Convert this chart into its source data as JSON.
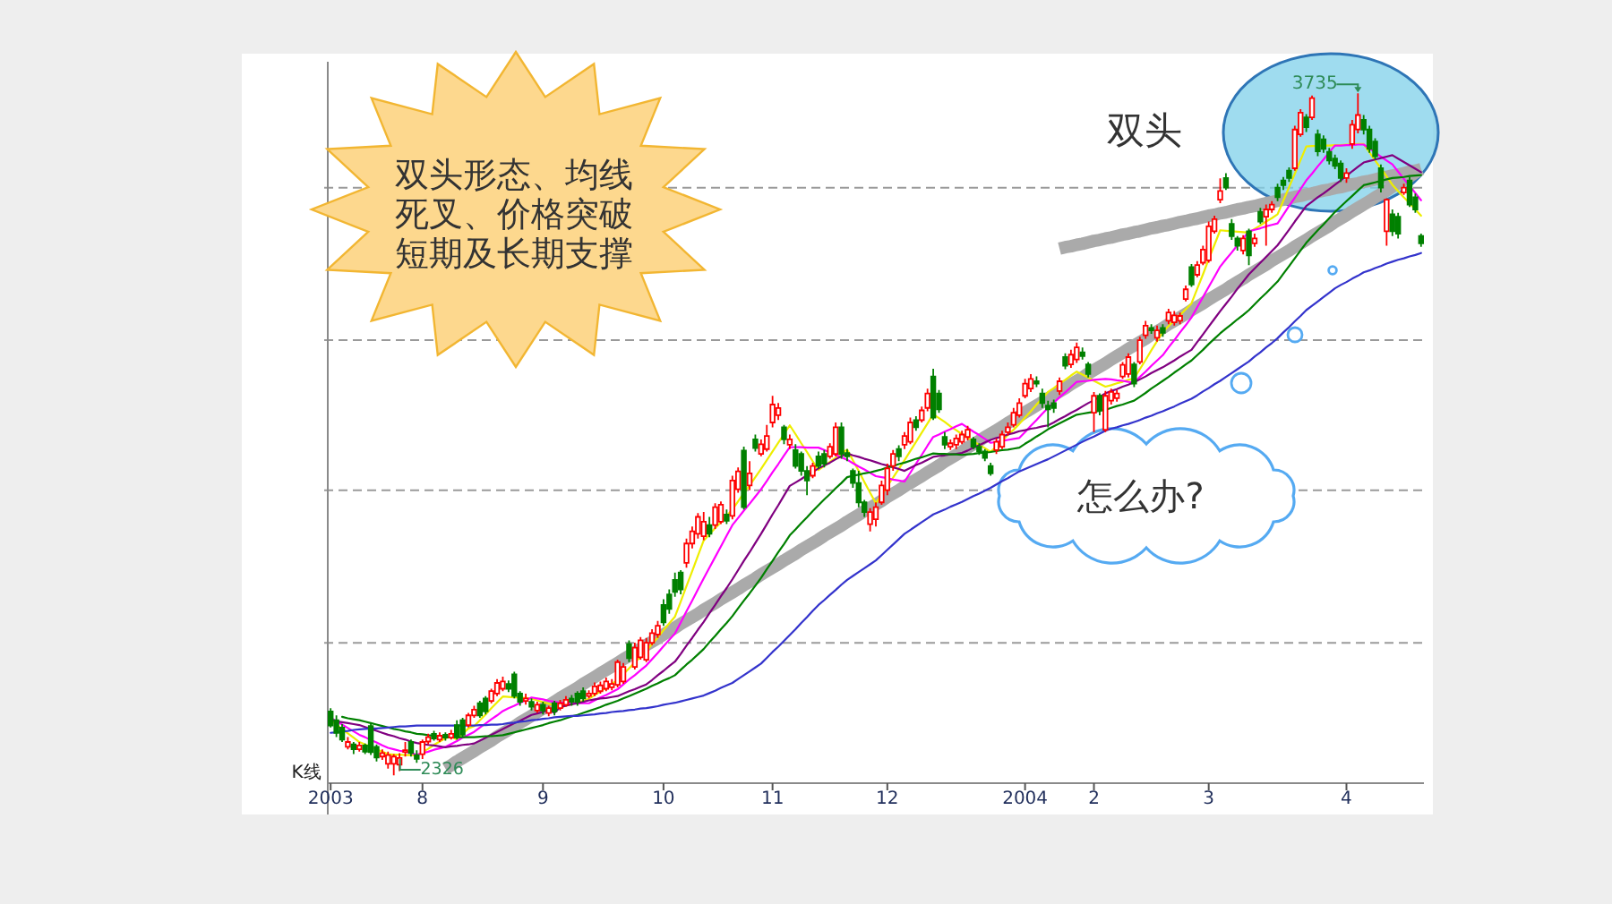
{
  "chart_data": {
    "type": "candlestick",
    "categories": [
      "2003",
      null,
      null,
      null,
      null,
      null,
      null,
      null,
      null,
      null,
      null,
      null,
      null,
      null,
      null,
      null,
      "8",
      null,
      null,
      null,
      null,
      null,
      null,
      null,
      null,
      null,
      null,
      null,
      null,
      null,
      null,
      null,
      null,
      null,
      null,
      null,
      null,
      "9",
      null,
      null,
      null,
      null,
      null,
      null,
      null,
      null,
      null,
      null,
      null,
      null,
      null,
      null,
      null,
      null,
      null,
      null,
      null,
      null,
      "10",
      null,
      null,
      null,
      null,
      null,
      null,
      null,
      null,
      null,
      null,
      null,
      null,
      null,
      null,
      null,
      null,
      null,
      null,
      "11",
      null,
      null,
      null,
      null,
      null,
      null,
      null,
      null,
      null,
      null,
      null,
      null,
      null,
      null,
      null,
      null,
      null,
      null,
      null,
      "12",
      null,
      null,
      null,
      null,
      null,
      null,
      null,
      null,
      null,
      null,
      null,
      null,
      null,
      null,
      null,
      null,
      null,
      null,
      null,
      null,
      null,
      null,
      null,
      "2004",
      null,
      null,
      null,
      null,
      null,
      null,
      null,
      null,
      null,
      null,
      null,
      "2",
      null,
      null,
      null,
      null,
      null,
      null,
      null,
      null,
      null,
      null,
      null,
      null,
      null,
      null,
      null,
      null,
      null,
      null,
      null,
      "3",
      null,
      null,
      null,
      null,
      null,
      null,
      null,
      null,
      null,
      null,
      null,
      null,
      null,
      null,
      null,
      null,
      null,
      null,
      null,
      null,
      null,
      null,
      null,
      "4",
      null,
      null,
      null,
      null,
      null,
      null,
      null,
      null,
      null,
      null,
      null,
      null,
      null
    ],
    "ohlc": [
      [
        2458,
        2465,
        2425,
        2429
      ],
      [
        2440,
        2450,
        2405,
        2414
      ],
      [
        2425,
        2432,
        2395,
        2400
      ],
      [
        2385,
        2405,
        2380,
        2395
      ],
      [
        2390,
        2395,
        2370,
        2380
      ],
      [
        2380,
        2395,
        2375,
        2388
      ],
      [
        2388,
        2392,
        2370,
        2375
      ],
      [
        2428,
        2435,
        2368,
        2374
      ],
      [
        2385,
        2390,
        2355,
        2363
      ],
      [
        2365,
        2380,
        2358,
        2372
      ],
      [
        2350,
        2375,
        2340,
        2368
      ],
      [
        2350,
        2370,
        2326,
        2365
      ],
      [
        2348,
        2372,
        2335,
        2362
      ],
      [
        2375,
        2395,
        2365,
        2378
      ],
      [
        2395,
        2400,
        2365,
        2372
      ],
      [
        2368,
        2378,
        2352,
        2360
      ],
      [
        2370,
        2400,
        2360,
        2395
      ],
      [
        2396,
        2412,
        2390,
        2405
      ],
      [
        2412,
        2418,
        2398,
        2402
      ],
      [
        2400,
        2415,
        2395,
        2408
      ],
      [
        2410,
        2415,
        2398,
        2404
      ],
      [
        2404,
        2420,
        2400,
        2412
      ],
      [
        2430,
        2440,
        2400,
        2405
      ],
      [
        2440,
        2445,
        2405,
        2410
      ],
      [
        2430,
        2455,
        2425,
        2450
      ],
      [
        2450,
        2470,
        2445,
        2462
      ],
      [
        2475,
        2480,
        2445,
        2450
      ],
      [
        2485,
        2490,
        2452,
        2458
      ],
      [
        2480,
        2505,
        2475,
        2500
      ],
      [
        2495,
        2525,
        2490,
        2517
      ],
      [
        2505,
        2530,
        2500,
        2520
      ],
      [
        2515,
        2522,
        2498,
        2505
      ],
      [
        2535,
        2540,
        2485,
        2490
      ],
      [
        2495,
        2500,
        2470,
        2478
      ],
      [
        2480,
        2495,
        2472,
        2485
      ],
      [
        2478,
        2485,
        2460,
        2468
      ],
      [
        2460,
        2478,
        2455,
        2472
      ],
      [
        2472,
        2478,
        2452,
        2460
      ],
      [
        2455,
        2470,
        2448,
        2465
      ],
      [
        2475,
        2480,
        2450,
        2458
      ],
      [
        2465,
        2482,
        2460,
        2475
      ],
      [
        2472,
        2490,
        2468,
        2482
      ],
      [
        2485,
        2492,
        2470,
        2478
      ],
      [
        2495,
        2500,
        2470,
        2478
      ],
      [
        2500,
        2508,
        2478,
        2485
      ],
      [
        2490,
        2502,
        2485,
        2495
      ],
      [
        2495,
        2518,
        2490,
        2510
      ],
      [
        2500,
        2520,
        2495,
        2512
      ],
      [
        2505,
        2528,
        2500,
        2520
      ],
      [
        2508,
        2525,
        2502,
        2515
      ],
      [
        2513,
        2565,
        2508,
        2560
      ],
      [
        2520,
        2558,
        2515,
        2550
      ],
      [
        2597,
        2605,
        2560,
        2568
      ],
      [
        2550,
        2600,
        2545,
        2590
      ],
      [
        2570,
        2612,
        2565,
        2605
      ],
      [
        2565,
        2610,
        2560,
        2600
      ],
      [
        2600,
        2628,
        2595,
        2620
      ],
      [
        2617,
        2645,
        2610,
        2635
      ],
      [
        2678,
        2690,
        2635,
        2642
      ],
      [
        2700,
        2710,
        2660,
        2670
      ],
      [
        2730,
        2745,
        2695,
        2705
      ],
      [
        2745,
        2750,
        2700,
        2710
      ],
      [
        2765,
        2815,
        2755,
        2805
      ],
      [
        2805,
        2840,
        2795,
        2830
      ],
      [
        2825,
        2868,
        2815,
        2860
      ],
      [
        2820,
        2870,
        2812,
        2850
      ],
      [
        2843,
        2860,
        2818,
        2825
      ],
      [
        2843,
        2888,
        2835,
        2880
      ],
      [
        2850,
        2892,
        2845,
        2885
      ],
      [
        2865,
        2875,
        2845,
        2852
      ],
      [
        2862,
        2945,
        2855,
        2935
      ],
      [
        2917,
        2962,
        2910,
        2954
      ],
      [
        2997,
        3005,
        2875,
        2880
      ],
      [
        2925,
        2975,
        2915,
        2950
      ],
      [
        3020,
        3030,
        2995,
        3002
      ],
      [
        2990,
        3020,
        2985,
        3010
      ],
      [
        3000,
        3050,
        2995,
        3027
      ],
      [
        3055,
        3110,
        3045,
        3092
      ],
      [
        3070,
        3095,
        3060,
        3085
      ],
      [
        3045,
        3050,
        3010,
        3020
      ],
      [
        3009,
        3030,
        3000,
        3020
      ],
      [
        2998,
        3010,
        2960,
        2965
      ],
      [
        2990,
        2995,
        2945,
        2955
      ],
      [
        2955,
        2965,
        2905,
        2935
      ],
      [
        2945,
        2972,
        2940,
        2965
      ],
      [
        2985,
        2995,
        2960,
        2965
      ],
      [
        2990,
        2998,
        2962,
        2970
      ],
      [
        2985,
        3012,
        2980,
        3005
      ],
      [
        2990,
        3055,
        2985,
        3045
      ],
      [
        3045,
        3055,
        2980,
        2990
      ],
      [
        2992,
        3000,
        2975,
        2985
      ],
      [
        2955,
        2960,
        2920,
        2930
      ],
      [
        2930,
        2955,
        2880,
        2890
      ],
      [
        2890,
        2895,
        2860,
        2870
      ],
      [
        2845,
        2878,
        2830,
        2870
      ],
      [
        2855,
        2890,
        2840,
        2880
      ],
      [
        2890,
        2935,
        2885,
        2925
      ],
      [
        2915,
        2970,
        2905,
        2960
      ],
      [
        2965,
        2998,
        2955,
        2990
      ],
      [
        3000,
        3008,
        2975,
        2985
      ],
      [
        3009,
        3035,
        3000,
        3027
      ],
      [
        3015,
        3065,
        3010,
        3055
      ],
      [
        3060,
        3068,
        3038,
        3045
      ],
      [
        3060,
        3088,
        3055,
        3080
      ],
      [
        3085,
        3125,
        3078,
        3115
      ],
      [
        3150,
        3166,
        3060,
        3065
      ],
      [
        3115,
        3122,
        3075,
        3082
      ],
      [
        3025,
        3035,
        3000,
        3009
      ],
      [
        3005,
        3020,
        2998,
        3012
      ],
      [
        3009,
        3030,
        3000,
        3022
      ],
      [
        3015,
        3038,
        3010,
        3030
      ],
      [
        3025,
        3048,
        3018,
        3040
      ],
      [
        3020,
        3025,
        3000,
        3005
      ],
      [
        3005,
        3012,
        2988,
        2995
      ],
      [
        2995,
        3000,
        2975,
        2982
      ],
      [
        2965,
        2972,
        2945,
        2950
      ],
      [
        2998,
        3022,
        2990,
        3015
      ],
      [
        3005,
        3038,
        3000,
        3030
      ],
      [
        3035,
        3055,
        3028,
        3045
      ],
      [
        3050,
        3085,
        3045,
        3075
      ],
      [
        3070,
        3105,
        3065,
        3095
      ],
      [
        3110,
        3145,
        3105,
        3135
      ],
      [
        3125,
        3155,
        3118,
        3145
      ],
      [
        3140,
        3150,
        3128,
        3135
      ],
      [
        3115,
        3125,
        3085,
        3095
      ],
      [
        3090,
        3100,
        3045,
        3082
      ],
      [
        3095,
        3102,
        3075,
        3085
      ],
      [
        3120,
        3148,
        3112,
        3140
      ],
      [
        3190,
        3198,
        3165,
        3172
      ],
      [
        3175,
        3205,
        3168,
        3195
      ],
      [
        3185,
        3220,
        3178,
        3210
      ],
      [
        3200,
        3210,
        3185,
        3192
      ],
      [
        3175,
        3180,
        3148,
        3155
      ],
      [
        3075,
        3118,
        3035,
        3110
      ],
      [
        3110,
        3115,
        3070,
        3080
      ],
      [
        3040,
        3120,
        3035,
        3110
      ],
      [
        3100,
        3125,
        3092,
        3118
      ],
      [
        3105,
        3122,
        3098,
        3115
      ],
      [
        3150,
        3180,
        3145,
        3174
      ],
      [
        3155,
        3198,
        3148,
        3190
      ],
      [
        3175,
        3180,
        3128,
        3135
      ],
      [
        3180,
        3232,
        3175,
        3225
      ],
      [
        3235,
        3265,
        3228,
        3255
      ],
      [
        3250,
        3258,
        3238,
        3245
      ],
      [
        3230,
        3255,
        3222,
        3245
      ],
      [
        3250,
        3258,
        3232,
        3240
      ],
      [
        3265,
        3290,
        3258,
        3282
      ],
      [
        3262,
        3285,
        3255,
        3276
      ],
      [
        3265,
        3282,
        3258,
        3275
      ],
      [
        3310,
        3338,
        3305,
        3330
      ],
      [
        3376,
        3382,
        3335,
        3340
      ],
      [
        3360,
        3388,
        3355,
        3380
      ],
      [
        3385,
        3420,
        3380,
        3412
      ],
      [
        3390,
        3470,
        3385,
        3460
      ],
      [
        3450,
        3482,
        3445,
        3475
      ],
      [
        3515,
        3559,
        3508,
        3533
      ],
      [
        3560,
        3570,
        3535,
        3540
      ],
      [
        3465,
        3475,
        3432,
        3440
      ],
      [
        3435,
        3440,
        3410,
        3420
      ],
      [
        3410,
        3442,
        3402,
        3435
      ],
      [
        3450,
        3455,
        3380,
        3400
      ],
      [
        3425,
        3445,
        3418,
        3435
      ],
      [
        3490,
        3498,
        3465,
        3470
      ],
      [
        3480,
        3505,
        3420,
        3495
      ],
      [
        3495,
        3512,
        3488,
        3505
      ],
      [
        3540,
        3548,
        3512,
        3520
      ],
      [
        3555,
        3562,
        3535,
        3545
      ],
      [
        3575,
        3582,
        3552,
        3560
      ],
      [
        3580,
        3668,
        3575,
        3660
      ],
      [
        3650,
        3702,
        3645,
        3695
      ],
      [
        3685,
        3692,
        3655,
        3665
      ],
      [
        3685,
        3730,
        3680,
        3725
      ],
      [
        3650,
        3660,
        3605,
        3615
      ],
      [
        3640,
        3648,
        3612,
        3620
      ],
      [
        3614,
        3622,
        3588,
        3596
      ],
      [
        3600,
        3608,
        3578,
        3585
      ],
      [
        3590,
        3596,
        3552,
        3560
      ],
      [
        3560,
        3580,
        3550,
        3570
      ],
      [
        3630,
        3680,
        3620,
        3670
      ],
      [
        3660,
        3735,
        3652,
        3690
      ],
      [
        3680,
        3690,
        3650,
        3660
      ],
      [
        3660,
        3668,
        3612,
        3620
      ],
      [
        3635,
        3642,
        3598,
        3605
      ],
      [
        3580,
        3588,
        3530,
        3540
      ],
      [
        3450,
        3518,
        3420,
        3515
      ],
      [
        3485,
        3495,
        3440,
        3450
      ],
      [
        3480,
        3488,
        3435,
        3445
      ],
      [
        3530,
        3548,
        3525,
        3540
      ],
      [
        3555,
        3562,
        3500,
        3505
      ],
      [
        3520,
        3528,
        3488,
        3495
      ],
      [
        3440,
        3445,
        3418,
        3425
      ]
    ],
    "ylim": [
      2310,
      3800
    ],
    "yticks": [
      {
        "value": 2600,
        "label": null
      },
      {
        "value": 2915,
        "label": null
      },
      {
        "value": 3225,
        "label": null
      },
      {
        "value": 3540,
        "label": null
      }
    ],
    "grid": "y",
    "tick_labels": "x",
    "series": [
      {
        "type": "line",
        "color": "#aaaaaa",
        "values": [
          null,
          null,
          null,
          null,
          null,
          null,
          null,
          null,
          null,
          null,
          null,
          null,
          null,
          null,
          null,
          null,
          null,
          null,
          null,
          null,
          2340,
          2347,
          2355,
          2362,
          2369,
          2376,
          2384,
          2391,
          2398,
          2406,
          2413,
          2420,
          2427,
          2435,
          2442,
          2449,
          2457,
          2464,
          2471,
          2478,
          2486,
          2493,
          2500,
          2507,
          2515,
          2522,
          2529,
          2537,
          2544,
          2551,
          2558,
          2566,
          2573,
          2580,
          2588,
          2595,
          2602,
          2609,
          2617,
          2624,
          2631,
          2639,
          2646,
          2653,
          2660,
          2668,
          2675,
          2682,
          2690,
          2697,
          2704,
          2711,
          2719,
          2726,
          2733,
          2741,
          2748,
          2755,
          2762,
          2770,
          2777,
          2784,
          2792,
          2799,
          2806,
          2813,
          2821,
          2828,
          2835,
          2842,
          2850,
          2857,
          2864,
          2872,
          2879,
          2886,
          2893,
          2901,
          2908,
          2915,
          2923,
          2930,
          2937,
          2944,
          2952,
          2959,
          2966,
          2974,
          2981,
          2988,
          2995,
          3003,
          3010,
          3017,
          3025,
          3032,
          3039,
          3046,
          3054,
          3061,
          3068,
          3076,
          3083,
          3090,
          3097,
          3105,
          3112,
          3119,
          3126,
          3134,
          3141,
          3148,
          3156,
          3163,
          3170,
          3177,
          3185,
          3192,
          3199,
          3207,
          3214,
          3221,
          3228,
          3236,
          3243,
          3250,
          3258,
          3265,
          3272,
          3279,
          3287,
          3294,
          3301,
          3309,
          3316,
          3323,
          3330,
          3338,
          3345,
          3352,
          3360,
          3367,
          3374,
          3381,
          3389,
          3396,
          3403,
          3410,
          3418,
          3425,
          3432,
          3440,
          3447,
          3454,
          3461,
          3469,
          3476,
          3483,
          3491,
          3498,
          3505,
          3512,
          3520,
          3527,
          3534,
          3542,
          3549,
          3556,
          3563,
          3571,
          3578
        ]
      },
      {
        "type": "line",
        "color": "#aaaaaa",
        "values": [
          null,
          null,
          null,
          null,
          null,
          null,
          null,
          null,
          null,
          null,
          null,
          null,
          null,
          null,
          null,
          null,
          null,
          null,
          null,
          null,
          null,
          null,
          null,
          null,
          null,
          null,
          null,
          null,
          null,
          null,
          null,
          null,
          null,
          null,
          null,
          null,
          null,
          null,
          null,
          null,
          null,
          null,
          null,
          null,
          null,
          null,
          null,
          null,
          null,
          null,
          null,
          null,
          null,
          null,
          null,
          null,
          null,
          null,
          null,
          null,
          null,
          null,
          null,
          null,
          null,
          null,
          null,
          null,
          null,
          null,
          null,
          null,
          null,
          null,
          null,
          null,
          null,
          null,
          null,
          null,
          null,
          null,
          null,
          null,
          null,
          null,
          null,
          null,
          null,
          null,
          null,
          null,
          null,
          null,
          null,
          null,
          null,
          null,
          null,
          null,
          null,
          null,
          null,
          null,
          null,
          null,
          null,
          null,
          null,
          null,
          null,
          null,
          null,
          null,
          null,
          null,
          null,
          null,
          null,
          null,
          null,
          null,
          null,
          null,
          null,
          null,
          null,
          3414,
          3417,
          3419,
          3422,
          3424,
          3427,
          3430,
          3432,
          3435,
          3437,
          3440,
          3443,
          3445,
          3448,
          3450,
          3453,
          3456,
          3458,
          3461,
          3463,
          3466,
          3469,
          3471,
          3474,
          3476,
          3479,
          3482,
          3484,
          3487,
          3489,
          3492,
          3495,
          3497,
          3500,
          3502,
          3505,
          3508,
          3510,
          3513,
          3515,
          3518,
          3521,
          3523,
          3526,
          3528,
          3531,
          3534,
          3536,
          3539,
          3541,
          3544,
          3547,
          3549,
          3552,
          3554,
          3557,
          3560,
          3562,
          3565,
          3567,
          3570,
          3573,
          3575,
          3578
        ]
      },
      {
        "type": "line",
        "color": "#eeee00",
        "values": [
          2440,
          2431,
          2422,
          2413,
          2404,
          2395,
          2390,
          2385,
          2380,
          2375,
          2370,
          2369,
          2369,
          2368,
          2368,
          2367,
          2374,
          2381,
          2389,
          2396,
          2403,
          2406,
          2400,
          2412,
          2423,
          2428,
          2440,
          2452,
          2465,
          2477,
          2489,
          2488,
          2487,
          2487,
          2486,
          2485,
          2481,
          2477,
          2474,
          2470,
          2466,
          2470,
          2473,
          2477,
          2480,
          2484,
          2492,
          2500,
          2507,
          2515,
          2523,
          2535,
          2547,
          2559,
          2571,
          2583,
          2597,
          2611,
          2626,
          2640,
          2654,
          2685,
          2717,
          2748,
          2780,
          2811,
          2824,
          2837,
          2849,
          2862,
          2875,
          2892,
          2909,
          2925,
          2942,
          2959,
          2977,
          2995,
          3013,
          3031,
          3049,
          3031,
          3012,
          2994,
          2975,
          2957,
          2965,
          2974,
          2982,
          2991,
          2999,
          2977,
          2955,
          2932,
          2910,
          2888,
          2906,
          2924,
          2941,
          2959,
          2977,
          2996,
          3015,
          3034,
          3053,
          3072,
          3064,
          3056,
          3047,
          3039,
          3031,
          3024,
          3016,
          3009,
          3002,
          2994,
          3006,
          3017,
          3029,
          3040,
          3052,
          3065,
          3078,
          3092,
          3105,
          3118,
          3126,
          3135,
          3143,
          3152,
          3160,
          3154,
          3148,
          3141,
          3135,
          3129,
          3132,
          3136,
          3139,
          3143,
          3146,
          3165,
          3184,
          3204,
          3223,
          3242,
          3254,
          3266,
          3277,
          3289,
          3301,
          3331,
          3361,
          3392,
          3422,
          3452,
          3451,
          3450,
          3449,
          3448,
          3447,
          3455,
          3462,
          3470,
          3477,
          3485,
          3513,
          3541,
          3569,
          3597,
          3625,
          3626,
          3626,
          3627,
          3627,
          3628,
          3628,
          3629,
          3629,
          3630,
          3630,
          3613,
          3596,
          3580,
          3563,
          3546,
          3533,
          3520,
          3508,
          3495,
          3482
        ]
      },
      {
        "type": "line",
        "color": "#ff00ff",
        "values": [
          2445,
          2438,
          2431,
          2424,
          2417,
          2410,
          2405,
          2399,
          2394,
          2388,
          2383,
          2380,
          2377,
          2375,
          2372,
          2369,
          2372,
          2375,
          2379,
          2382,
          2385,
          2391,
          2397,
          2404,
          2410,
          2416,
          2425,
          2433,
          2442,
          2450,
          2459,
          2465,
          2470,
          2476,
          2481,
          2487,
          2485,
          2483,
          2480,
          2478,
          2476,
          2476,
          2476,
          2475,
          2475,
          2475,
          2481,
          2487,
          2492,
          2498,
          2504,
          2514,
          2524,
          2533,
          2543,
          2553,
          2566,
          2579,
          2593,
          2606,
          2619,
          2642,
          2665,
          2687,
          2710,
          2733,
          2755,
          2777,
          2799,
          2821,
          2843,
          2858,
          2873,
          2887,
          2902,
          2917,
          2934,
          2952,
          2969,
          2987,
          3004,
          3004,
          3004,
          3003,
          3003,
          3003,
          2998,
          2993,
          2988,
          2983,
          2978,
          2971,
          2964,
          2958,
          2951,
          2944,
          2942,
          2940,
          2937,
          2935,
          2933,
          2951,
          2970,
          2988,
          3007,
          3025,
          3030,
          3036,
          3041,
          3047,
          3052,
          3044,
          3036,
          3029,
          3021,
          3013,
          3015,
          3017,
          3019,
          3021,
          3023,
          3035,
          3048,
          3060,
          3073,
          3085,
          3096,
          3107,
          3117,
          3128,
          3139,
          3140,
          3141,
          3143,
          3144,
          3145,
          3144,
          3142,
          3141,
          3139,
          3138,
          3149,
          3160,
          3172,
          3183,
          3194,
          3210,
          3225,
          3241,
          3256,
          3272,
          3293,
          3314,
          3335,
          3356,
          3377,
          3392,
          3406,
          3421,
          3435,
          3450,
          3453,
          3456,
          3460,
          3463,
          3466,
          3484,
          3502,
          3519,
          3537,
          3555,
          3569,
          3584,
          3598,
          3613,
          3627,
          3627,
          3628,
          3628,
          3629,
          3629,
          3621,
          3613,
          3604,
          3596,
          3588,
          3573,
          3558,
          3544,
          3529,
          3514
        ]
      },
      {
        "type": "line",
        "color": "#800080",
        "values": [
          2440,
          2438,
          2436,
          2434,
          2432,
          2430,
          2426,
          2422,
          2418,
          2414,
          2410,
          2407,
          2403,
          2400,
          2396,
          2393,
          2391,
          2389,
          2388,
          2386,
          2384,
          2386,
          2387,
          2389,
          2390,
          2392,
          2398,
          2404,
          2410,
          2416,
          2422,
          2428,
          2434,
          2439,
          2445,
          2451,
          2454,
          2457,
          2461,
          2455,
          2467,
          2470,
          2473,
          2475,
          2478,
          2481,
          2483,
          2485,
          2486,
          2488,
          2490,
          2495,
          2500,
          2504,
          2509,
          2514,
          2523,
          2533,
          2542,
          2552,
          2561,
          2577,
          2594,
          2610,
          2627,
          2643,
          2661,
          2678,
          2696,
          2713,
          2731,
          2750,
          2769,
          2787,
          2806,
          2825,
          2845,
          2865,
          2884,
          2904,
          2924,
          2931,
          2938,
          2946,
          2953,
          2960,
          2966,
          2972,
          2979,
          2985,
          2991,
          2987,
          2984,
          2980,
          2977,
          2973,
          2969,
          2966,
          2962,
          2959,
          2955,
          2961,
          2967,
          2972,
          2978,
          2984,
          2986,
          2987,
          2989,
          2990,
          2992,
          2997,
          3003,
          3008,
          3014,
          3019,
          3023,
          3026,
          3030,
          3033,
          3037,
          3039,
          3042,
          3044,
          3047,
          3049,
          3055,
          3062,
          3068,
          3075,
          3081,
          3088,
          3095,
          3101,
          3108,
          3115,
          3120,
          3124,
          3129,
          3133,
          3138,
          3144,
          3150,
          3157,
          3163,
          3169,
          3176,
          3183,
          3191,
          3198,
          3205,
          3221,
          3237,
          3253,
          3269,
          3285,
          3300,
          3315,
          3331,
          3346,
          3361,
          3373,
          3385,
          3397,
          3409,
          3421,
          3437,
          3453,
          3470,
          3486,
          3502,
          3511,
          3520,
          3528,
          3537,
          3546,
          3555,
          3564,
          3574,
          3583,
          3592,
          3595,
          3598,
          3601,
          3604,
          3607,
          3600,
          3593,
          3586,
          3579,
          3572
        ]
      },
      {
        "type": "line",
        "color": "#008000",
        "values": [
          null,
          null,
          2447,
          2444,
          2442,
          2440,
          2437,
          2434,
          2431,
          2428,
          2425,
          2422,
          2420,
          2417,
          2415,
          2412,
          2411,
          2409,
          2408,
          2406,
          2405,
          2405,
          2405,
          2405,
          2405,
          2405,
          2406,
          2407,
          2407,
          2408,
          2409,
          2412,
          2415,
          2418,
          2421,
          2424,
          2427,
          2430,
          2434,
          2437,
          2440,
          2444,
          2448,
          2451,
          2455,
          2459,
          2463,
          2467,
          2472,
          2476,
          2480,
          2485,
          2490,
          2495,
          2500,
          2505,
          2511,
          2516,
          2522,
          2527,
          2533,
          2544,
          2555,
          2565,
          2576,
          2587,
          2601,
          2614,
          2628,
          2641,
          2655,
          2671,
          2687,
          2702,
          2718,
          2734,
          2752,
          2769,
          2787,
          2804,
          2822,
          2834,
          2847,
          2859,
          2872,
          2884,
          2896,
          2907,
          2919,
          2930,
          2942,
          2945,
          2947,
          2950,
          2952,
          2955,
          2958,
          2962,
          2965,
          2969,
          2972,
          2976,
          2980,
          2983,
          2987,
          2991,
          2990,
          2990,
          2989,
          2989,
          2988,
          2989,
          2990,
          2992,
          2993,
          2994,
          2996,
          2998,
          2999,
          3001,
          3003,
          3011,
          3018,
          3026,
          3033,
          3041,
          3047,
          3053,
          3059,
          3065,
          3071,
          3073,
          3075,
          3077,
          3079,
          3081,
          3085,
          3089,
          3092,
          3096,
          3100,
          3108,
          3116,
          3125,
          3133,
          3141,
          3149,
          3158,
          3166,
          3175,
          3183,
          3194,
          3205,
          3217,
          3228,
          3239,
          3249,
          3258,
          3268,
          3277,
          3287,
          3299,
          3311,
          3322,
          3334,
          3346,
          3362,
          3378,
          3394,
          3410,
          3426,
          3439,
          3452,
          3464,
          3477,
          3490,
          3501,
          3512,
          3523,
          3534,
          3545,
          3548,
          3551,
          3554,
          3557,
          3560,
          3561,
          3562,
          3564,
          3565,
          3566
        ]
      },
      {
        "type": "line",
        "color": "#3333cc",
        "values": [
          2414,
          2415,
          2417,
          2418,
          2420,
          2421,
          2422,
          2423,
          2423,
          2424,
          2425,
          2426,
          2427,
          2427,
          2428,
          2429,
          2429,
          2429,
          2429,
          2429,
          2429,
          2429,
          2429,
          2429,
          2429,
          2429,
          2430,
          2430,
          2431,
          2431,
          2432,
          2434,
          2435,
          2437,
          2438,
          2440,
          2441,
          2443,
          2444,
          2446,
          2447,
          2448,
          2449,
          2449,
          2450,
          2451,
          2452,
          2454,
          2455,
          2457,
          2458,
          2459,
          2461,
          2462,
          2464,
          2465,
          2467,
          2469,
          2472,
          2474,
          2476,
          2479,
          2482,
          2485,
          2488,
          2491,
          2496,
          2501,
          2507,
          2512,
          2517,
          2525,
          2533,
          2541,
          2549,
          2557,
          2569,
          2581,
          2592,
          2604,
          2616,
          2628,
          2641,
          2653,
          2666,
          2678,
          2688,
          2699,
          2709,
          2720,
          2730,
          2738,
          2746,
          2754,
          2762,
          2770,
          2781,
          2792,
          2803,
          2814,
          2825,
          2833,
          2841,
          2849,
          2857,
          2865,
          2870,
          2875,
          2881,
          2886,
          2891,
          2897,
          2903,
          2908,
          2914,
          2920,
          2927,
          2934,
          2940,
          2947,
          2954,
          2959,
          2964,
          2969,
          2974,
          2979,
          2985,
          2991,
          2997,
          3003,
          3009,
          3015,
          3021,
          3026,
          3032,
          3038,
          3042,
          3045,
          3049,
          3052,
          3056,
          3060,
          3065,
          3069,
          3074,
          3078,
          3083,
          3088,
          3094,
          3099,
          3104,
          3111,
          3119,
          3126,
          3134,
          3141,
          3149,
          3157,
          3165,
          3173,
          3181,
          3191,
          3200,
          3210,
          3219,
          3229,
          3241,
          3252,
          3264,
          3275,
          3287,
          3296,
          3305,
          3314,
          3323,
          3332,
          3339,
          3345,
          3352,
          3358,
          3365,
          3369,
          3374,
          3378,
          3383,
          3387,
          3391,
          3394,
          3398,
          3401,
          3405
        ]
      }
    ],
    "annotations": [
      "双头形态、均线死叉、价格突破短期及长期支撑",
      "双头",
      "怎么办?",
      "K线",
      {
        "text": "2326",
        "y": 2326
      },
      {
        "text": "3735",
        "y": 3735
      }
    ]
  }
}
